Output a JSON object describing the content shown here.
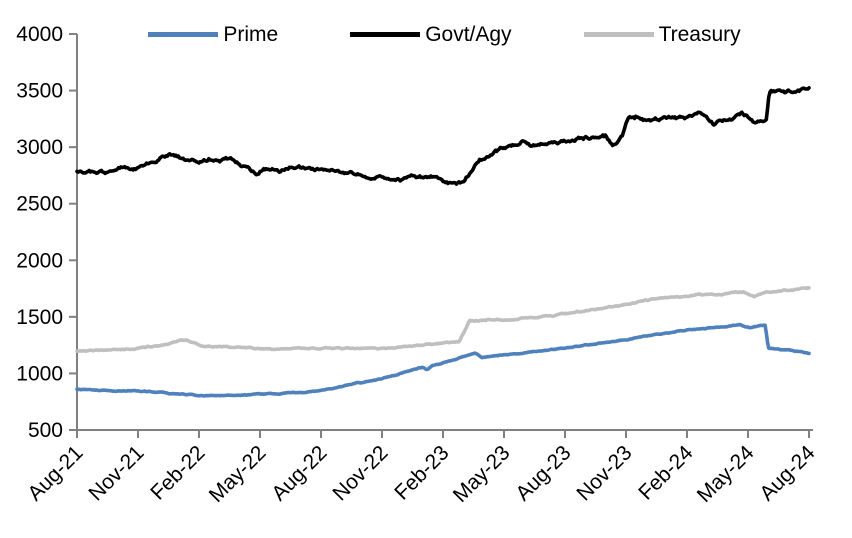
{
  "chart_data": {
    "type": "line",
    "title": "",
    "legend_position": "top",
    "background": "#ffffff",
    "axis_color": "#808080",
    "text_color": "#000000",
    "grid": false,
    "x_tick_labels": [
      "Aug-21",
      "Nov-21",
      "Feb-22",
      "May-22",
      "Aug-22",
      "Nov-22",
      "Feb-23",
      "May-23",
      "Aug-23",
      "Nov-23",
      "Feb-24",
      "May-24",
      "Aug-24"
    ],
    "x_tick_interval_months": 3,
    "x_range_months": [
      0,
      36
    ],
    "y_ticks": [
      500,
      1000,
      1500,
      2000,
      2500,
      3000,
      3500,
      4000
    ],
    "ylim": [
      500,
      4000
    ],
    "series": [
      {
        "name": "Prime",
        "color": "#4F81BD",
        "noise": 8,
        "points": [
          [
            0,
            858
          ],
          [
            1,
            851
          ],
          [
            2,
            846
          ],
          [
            3,
            842
          ],
          [
            4,
            833
          ],
          [
            5,
            818
          ],
          [
            6,
            806
          ],
          [
            7,
            803
          ],
          [
            8,
            809
          ],
          [
            9,
            817
          ],
          [
            10,
            822
          ],
          [
            11,
            830
          ],
          [
            12,
            850
          ],
          [
            13,
            886
          ],
          [
            14,
            920
          ],
          [
            15,
            953
          ],
          [
            16,
            1003
          ],
          [
            17,
            1055
          ],
          [
            17.2,
            1028
          ],
          [
            17.5,
            1068
          ],
          [
            18,
            1092
          ],
          [
            19,
            1150
          ],
          [
            19.6,
            1180
          ],
          [
            19.9,
            1142
          ],
          [
            20.5,
            1152
          ],
          [
            21,
            1163
          ],
          [
            22,
            1183
          ],
          [
            23,
            1203
          ],
          [
            24,
            1226
          ],
          [
            25,
            1250
          ],
          [
            26,
            1270
          ],
          [
            27,
            1297
          ],
          [
            28,
            1328
          ],
          [
            29,
            1358
          ],
          [
            30,
            1388
          ],
          [
            31,
            1400
          ],
          [
            32,
            1413
          ],
          [
            32.6,
            1430
          ],
          [
            33.1,
            1402
          ],
          [
            33.5,
            1418
          ],
          [
            33.85,
            1428
          ],
          [
            34.0,
            1224
          ],
          [
            34.6,
            1212
          ],
          [
            35.2,
            1200
          ],
          [
            35.6,
            1188
          ],
          [
            36,
            1180
          ]
        ]
      },
      {
        "name": "Govt/Agy",
        "color": "#000000",
        "noise": 30,
        "points": [
          [
            0,
            2778
          ],
          [
            0.5,
            2770
          ],
          [
            1,
            2790
          ],
          [
            1.5,
            2775
          ],
          [
            2,
            2800
          ],
          [
            3,
            2828
          ],
          [
            4,
            2878
          ],
          [
            4.7,
            2938
          ],
          [
            5.2,
            2898
          ],
          [
            6,
            2878
          ],
          [
            6.5,
            2902
          ],
          [
            7,
            2868
          ],
          [
            7.6,
            2898
          ],
          [
            8,
            2868
          ],
          [
            8.8,
            2768
          ],
          [
            9.4,
            2818
          ],
          [
            10,
            2798
          ],
          [
            10.5,
            2828
          ],
          [
            11,
            2808
          ],
          [
            12,
            2795
          ],
          [
            13,
            2778
          ],
          [
            14,
            2760
          ],
          [
            15,
            2742
          ],
          [
            16,
            2722
          ],
          [
            16.5,
            2742
          ],
          [
            17,
            2730
          ],
          [
            17.4,
            2748
          ],
          [
            18,
            2692
          ],
          [
            18.6,
            2662
          ],
          [
            19,
            2690
          ],
          [
            19.8,
            2888
          ],
          [
            20.4,
            2930
          ],
          [
            21,
            3000
          ],
          [
            21.5,
            3028
          ],
          [
            22,
            3048
          ],
          [
            22.4,
            3015
          ],
          [
            23,
            3040
          ],
          [
            24,
            3060
          ],
          [
            25,
            3082
          ],
          [
            26,
            3098
          ],
          [
            26.35,
            3030
          ],
          [
            26.8,
            3095
          ],
          [
            27.1,
            3240
          ],
          [
            27.5,
            3265
          ],
          [
            28,
            3235
          ],
          [
            29,
            3252
          ],
          [
            30,
            3268
          ],
          [
            30.6,
            3298
          ],
          [
            31.3,
            3208
          ],
          [
            32,
            3248
          ],
          [
            32.7,
            3295
          ],
          [
            33.3,
            3228
          ],
          [
            33.9,
            3258
          ],
          [
            34.05,
            3488
          ],
          [
            34.6,
            3498
          ],
          [
            35.1,
            3485
          ],
          [
            35.6,
            3500
          ],
          [
            36,
            3520
          ]
        ]
      },
      {
        "name": "Treasury",
        "color": "#BFBFBF",
        "noise": 12,
        "points": [
          [
            0,
            1200
          ],
          [
            1,
            1202
          ],
          [
            2,
            1208
          ],
          [
            3,
            1222
          ],
          [
            4,
            1246
          ],
          [
            5,
            1288
          ],
          [
            5.4,
            1298
          ],
          [
            6,
            1252
          ],
          [
            7,
            1235
          ],
          [
            8,
            1228
          ],
          [
            9,
            1215
          ],
          [
            10,
            1218
          ],
          [
            11,
            1220
          ],
          [
            12,
            1222
          ],
          [
            13,
            1218
          ],
          [
            14,
            1217
          ],
          [
            15,
            1222
          ],
          [
            16,
            1235
          ],
          [
            17,
            1253
          ],
          [
            18,
            1268
          ],
          [
            18.8,
            1282
          ],
          [
            19.3,
            1462
          ],
          [
            20,
            1472
          ],
          [
            20.7,
            1482
          ],
          [
            21.3,
            1470
          ],
          [
            22,
            1490
          ],
          [
            22.6,
            1486
          ],
          [
            23,
            1503
          ],
          [
            24,
            1524
          ],
          [
            25,
            1553
          ],
          [
            26,
            1575
          ],
          [
            27,
            1608
          ],
          [
            28,
            1648
          ],
          [
            29,
            1670
          ],
          [
            30,
            1688
          ],
          [
            30.5,
            1698
          ],
          [
            31,
            1693
          ],
          [
            32,
            1708
          ],
          [
            32.8,
            1722
          ],
          [
            33.3,
            1680
          ],
          [
            33.7,
            1708
          ],
          [
            34,
            1714
          ],
          [
            35,
            1735
          ],
          [
            36,
            1757
          ]
        ]
      }
    ]
  }
}
